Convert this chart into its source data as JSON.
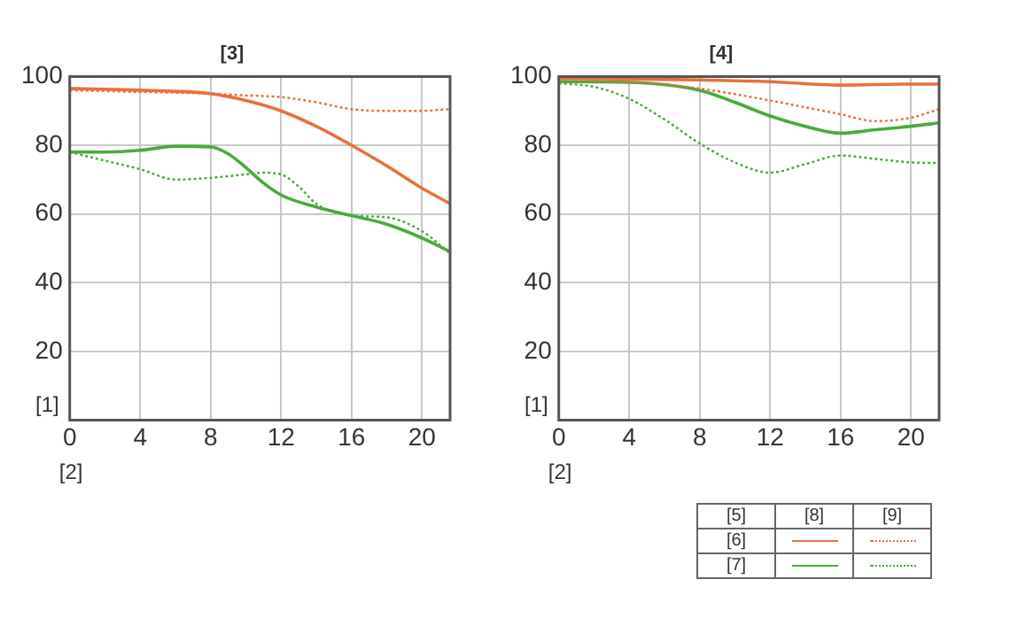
{
  "chart_data": [
    {
      "type": "line",
      "title": "[3]",
      "xlabel": "[2]",
      "ylabel": "[1]",
      "xlim": [
        0,
        21.6
      ],
      "xticks": [
        0,
        4,
        8,
        12,
        16,
        20
      ],
      "ylim": [
        0,
        100
      ],
      "yticks": [
        {
          "value": 0,
          "label": null
        },
        20,
        40,
        60,
        80,
        100
      ],
      "grid": true,
      "marker": "none",
      "series": [
        {
          "color": "#e8703a",
          "line_style": "solid",
          "x": [
            0,
            2,
            4,
            6,
            8,
            10,
            12,
            14,
            16,
            18,
            20,
            21.6
          ],
          "values": [
            96.5,
            96.3,
            96,
            95.7,
            95,
            93,
            90,
            85.5,
            80,
            74,
            67.5,
            63
          ]
        },
        {
          "color": "#e8703a",
          "line_style": "dotted",
          "x": [
            0,
            4,
            8,
            10,
            12,
            14,
            16,
            18,
            20,
            21.6
          ],
          "values": [
            96,
            95.5,
            95,
            94.5,
            94,
            92.5,
            90.5,
            90,
            90,
            90.5
          ]
        },
        {
          "color": "#4aaa3c",
          "line_style": "solid",
          "x": [
            0,
            2,
            4,
            6,
            8,
            9,
            10,
            11,
            12,
            14,
            16,
            18,
            20,
            21.6
          ],
          "values": [
            78,
            78,
            78.5,
            79.7,
            79.5,
            77.5,
            73.5,
            69,
            65.5,
            62,
            59.5,
            57,
            53,
            49
          ]
        },
        {
          "color": "#4aaa3c",
          "line_style": "dotted",
          "x": [
            0,
            2,
            4,
            6,
            8,
            10,
            11,
            12,
            13,
            14,
            16,
            18,
            20,
            21.6
          ],
          "values": [
            78,
            75.5,
            73,
            70,
            70.5,
            71.5,
            72,
            71.5,
            68,
            63,
            59.5,
            59,
            55,
            48.5
          ]
        }
      ]
    },
    {
      "type": "line",
      "title": "[4]",
      "xlabel": "[2]",
      "ylabel": "[1]",
      "xlim": [
        0,
        21.6
      ],
      "xticks": [
        0,
        4,
        8,
        12,
        16,
        20
      ],
      "ylim": [
        0,
        100
      ],
      "yticks": [
        {
          "value": 0,
          "label": null
        },
        20,
        40,
        60,
        80,
        100
      ],
      "grid": true,
      "marker": "none",
      "series": [
        {
          "color": "#e8703a",
          "line_style": "solid",
          "x": [
            0,
            4,
            8,
            12,
            16,
            20,
            21.6
          ],
          "values": [
            99.5,
            99.3,
            99,
            98.5,
            97.5,
            97.8,
            97.8
          ]
        },
        {
          "color": "#e8703a",
          "line_style": "dotted",
          "x": [
            0,
            4,
            8,
            12,
            16,
            18,
            20,
            21.6
          ],
          "values": [
            99,
            98.5,
            96.5,
            93,
            89,
            87,
            88,
            90.5
          ]
        },
        {
          "color": "#4aaa3c",
          "line_style": "solid",
          "x": [
            0,
            4,
            8,
            10,
            12,
            14,
            16,
            18,
            20,
            21.6
          ],
          "values": [
            98.5,
            98.3,
            96,
            92.5,
            88.5,
            85.5,
            83.5,
            84.5,
            85.5,
            86.5
          ]
        },
        {
          "color": "#4aaa3c",
          "line_style": "dotted",
          "x": [
            0,
            2,
            4,
            6,
            8,
            10,
            12,
            14,
            16,
            18,
            20,
            21.6
          ],
          "values": [
            98,
            97,
            93.5,
            87.5,
            80.5,
            75,
            72,
            74.5,
            77,
            76,
            75,
            74.8
          ]
        }
      ]
    },
    {
      "type": "other",
      "annotations": [
        "[5]",
        "[6]",
        "[7]",
        "[8]",
        "[9]"
      ]
    }
  ]
}
